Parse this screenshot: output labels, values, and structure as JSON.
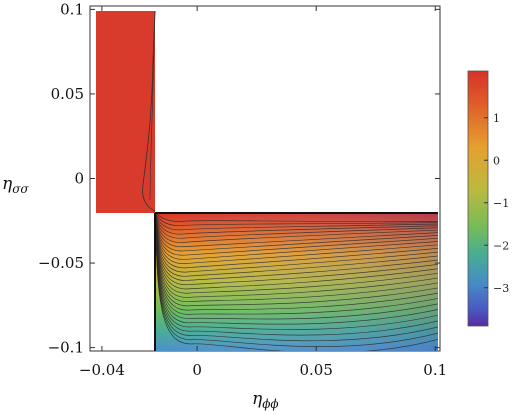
{
  "chart_data": {
    "type": "heatmap",
    "subtype": "contour",
    "title": "",
    "xlabel": "η",
    "xlabel_sub": "ϕϕ",
    "ylabel": "η",
    "ylabel_sub": "σσ",
    "xlim": [
      -0.045,
      0.102
    ],
    "ylim": [
      -0.102,
      0.102
    ],
    "xticks": [
      -0.04,
      0,
      0.05,
      0.1
    ],
    "xtick_labels": [
      "−0.04",
      "0",
      "0.05",
      "0.1"
    ],
    "yticks": [
      0.1,
      0.05,
      0,
      -0.05,
      -0.1
    ],
    "ytick_labels": [
      "0.1",
      "0.05",
      "0",
      "−0.05",
      "−0.1"
    ],
    "grid": false,
    "regions": [
      {
        "name": "upper-left",
        "x": [
          -0.0445,
          -0.022
        ],
        "y": [
          -0.02,
          0.1
        ],
        "value_range": [
          1.5,
          2.0
        ]
      },
      {
        "name": "lower-right",
        "x": [
          -0.022,
          0.1
        ],
        "y": [
          -0.1,
          -0.02
        ],
        "value_range": [
          -3.8,
          2.0
        ]
      }
    ],
    "colorbar": {
      "range": [
        -3.9,
        2.1
      ],
      "ticks": [
        1,
        0,
        -1,
        -2,
        -3
      ],
      "tick_labels": [
        "1",
        "0",
        "−1",
        "−2",
        "−3"
      ],
      "colors": [
        "#d63327",
        "#e5822b",
        "#cdb83b",
        "#8fbd4a",
        "#4eb28a",
        "#4690c5",
        "#4661c8",
        "#5a2a9e"
      ]
    }
  }
}
